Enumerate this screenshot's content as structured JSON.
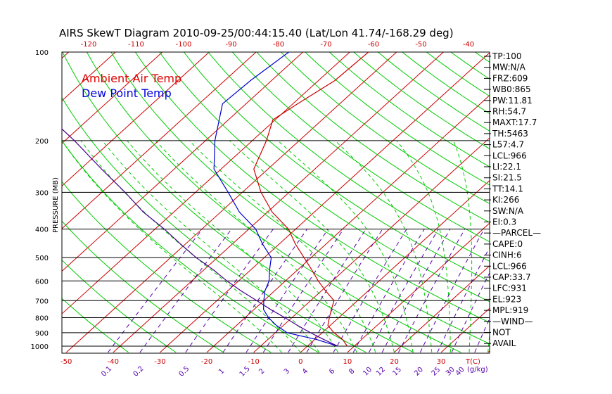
{
  "title": "AIRS SkewT Diagram 2010-09-25/00:44:15.40 (Lat/Lon 41.74/-168.29 deg)",
  "chart_data": {
    "type": "line",
    "title": "AIRS SkewT Diagram 2010-09-25/00:44:15.40 (Lat/Lon 41.74/-168.29 deg)",
    "ylabel": "PRESSURE (MB)",
    "xlabel": "T(C)",
    "mixing_ratio_unit": "(g/kg)",
    "y_scale": "log",
    "ylim": [
      1050,
      100
    ],
    "pressure_ticks": [
      100,
      200,
      300,
      400,
      500,
      600,
      700,
      800,
      900,
      1000
    ],
    "top_temp_ticks": [
      -120,
      -110,
      -100,
      -90,
      -80,
      -70,
      -60,
      -50,
      -40
    ],
    "bottom_temp_ticks": [
      -50,
      -40,
      -30,
      -20,
      -10,
      0,
      10,
      20,
      30
    ],
    "mixing_ratio_ticks": [
      "0.1",
      "0.2",
      "0.5",
      "1",
      "1.5",
      "2",
      "3",
      "4",
      "6",
      "8",
      "10",
      "12",
      "15",
      "20",
      "25",
      "30",
      "40"
    ],
    "legend": [
      {
        "label": "Ambient Air Temp",
        "color": "#dd0000"
      },
      {
        "label": "Dew Point Temp",
        "color": "#0000dd"
      }
    ],
    "series": [
      {
        "name": "Ambient Air Temp",
        "color": "#cc0000",
        "points": [
          [
            1000,
            8.5
          ],
          [
            950,
            6.0
          ],
          [
            900,
            2.5
          ],
          [
            850,
            -0.5
          ],
          [
            800,
            -2.0
          ],
          [
            750,
            -3.5
          ],
          [
            700,
            -5.0
          ],
          [
            650,
            -9.0
          ],
          [
            600,
            -13.0
          ],
          [
            550,
            -17.0
          ],
          [
            500,
            -21.5
          ],
          [
            450,
            -26.5
          ],
          [
            400,
            -31.5
          ],
          [
            350,
            -39.0
          ],
          [
            300,
            -46.0
          ],
          [
            250,
            -53.0
          ],
          [
            200,
            -57.0
          ],
          [
            170,
            -60.5
          ],
          [
            150,
            -59.0
          ],
          [
            125,
            -56.5
          ],
          [
            100,
            -56.0
          ]
        ]
      },
      {
        "name": "Dew Point Temp",
        "color": "#0000cc",
        "points": [
          [
            1000,
            6.5
          ],
          [
            950,
            0.5
          ],
          [
            900,
            -7.5
          ],
          [
            850,
            -11.5
          ],
          [
            800,
            -15.0
          ],
          [
            750,
            -18.0
          ],
          [
            700,
            -20.0
          ],
          [
            650,
            -22.0
          ],
          [
            600,
            -23.5
          ],
          [
            550,
            -26.0
          ],
          [
            500,
            -28.5
          ],
          [
            450,
            -33.5
          ],
          [
            400,
            -38.5
          ],
          [
            350,
            -46.0
          ],
          [
            300,
            -53.0
          ],
          [
            250,
            -61.5
          ],
          [
            200,
            -68.0
          ],
          [
            150,
            -75.0
          ],
          [
            125,
            -74.5
          ],
          [
            100,
            -73.0
          ]
        ]
      },
      {
        "name": "parcel",
        "color": "#440088",
        "points": [
          [
            1000,
            6.5
          ],
          [
            950,
            2.0
          ],
          [
            900,
            -2.5
          ],
          [
            850,
            -7.0
          ],
          [
            800,
            -11.5
          ],
          [
            750,
            -16.5
          ],
          [
            700,
            -21.5
          ],
          [
            650,
            -27.0
          ],
          [
            600,
            -32.5
          ],
          [
            550,
            -38.0
          ],
          [
            500,
            -44.5
          ],
          [
            450,
            -51.0
          ],
          [
            400,
            -58.0
          ],
          [
            350,
            -66.5
          ],
          [
            300,
            -75.0
          ],
          [
            250,
            -85.5
          ],
          [
            200,
            -98.0
          ],
          [
            150,
            -115.0
          ],
          [
            125,
            -124.0
          ],
          [
            100,
            -134.0
          ]
        ]
      }
    ]
  },
  "indices": [
    "TP:100",
    "MW:N/A",
    "FRZ:609",
    "WB0:865",
    "PW:11.81",
    "RH:54.7",
    "MAXT:17.7",
    "TH:5463",
    "L57:4.7",
    "LCL:966",
    "LI:22.1",
    "SI:21.5",
    "TT:14.1",
    "KI:266",
    "SW:N/A",
    "EI:0.3",
    "—PARCEL—",
    "CAPE:0",
    "CINH:6",
    "LCL:966",
    "CAP:33.7",
    "LFC:931",
    "EL:923",
    "MPL:919",
    "—WIND—",
    "NOT",
    "AVAIL"
  ],
  "colors": {
    "temp": "#cc0000",
    "dew": "#0000cc",
    "parcel": "#440088",
    "dry_adiabat": "#00cc00",
    "moist_adiabat": "#00cc00",
    "isotherm": "#cc0000",
    "mixing_ratio": "#5500aa",
    "axis_ticks_top": "#cc0000",
    "axis_ticks_bottom": "#cc0000",
    "mixing_ticks": "#5500aa"
  }
}
